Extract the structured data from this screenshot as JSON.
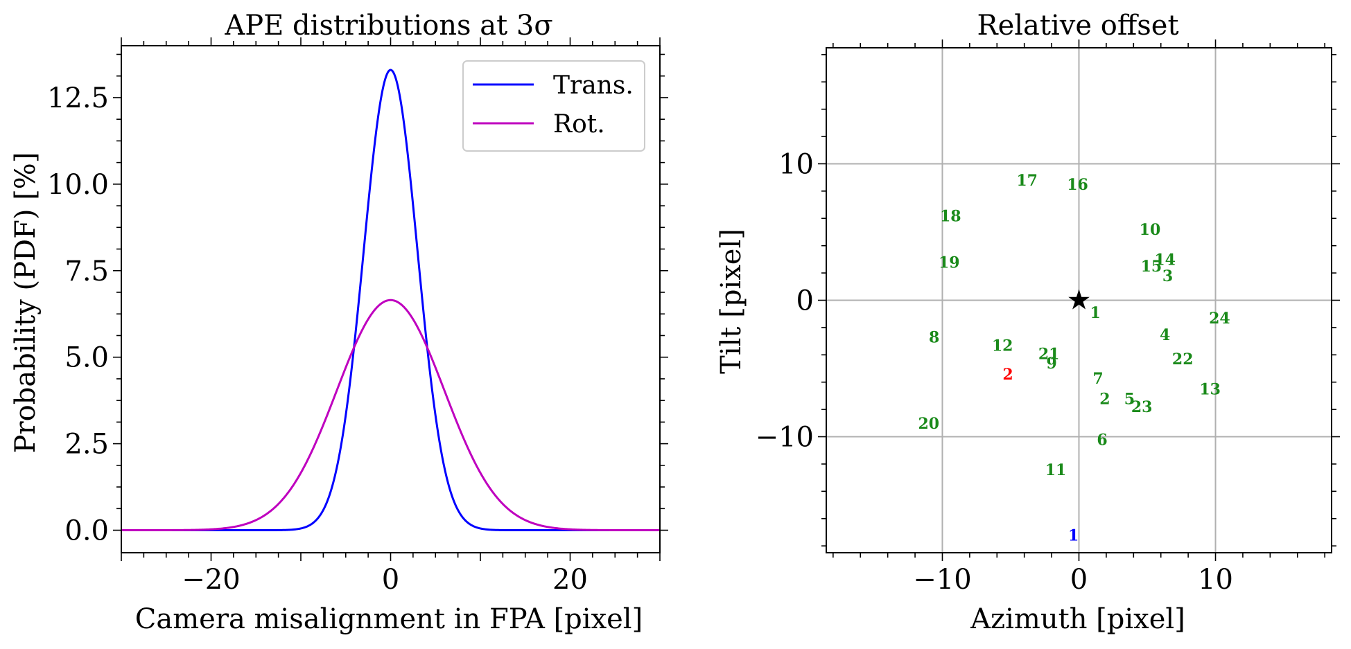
{
  "chart_data": [
    {
      "type": "line",
      "title": "APE distributions at 3σ",
      "xlabel": "Camera misalignment in FPA [pixel]",
      "ylabel": "Probability (PDF) [%]",
      "xlim": [
        -30,
        30
      ],
      "ylim": [
        -0.65,
        14.0
      ],
      "xticks": [
        -20,
        0,
        20
      ],
      "xtick_labels": [
        "−20",
        "0",
        "20"
      ],
      "yticks": [
        0.0,
        2.5,
        5.0,
        7.5,
        10.0,
        12.5
      ],
      "ytick_labels": [
        "0.0",
        "2.5",
        "5.0",
        "7.5",
        "10.0",
        "12.5"
      ],
      "grid": false,
      "legend_position": "top-right",
      "series": [
        {
          "name": "Trans.",
          "color": "#0000ff",
          "kind": "gaussian",
          "mean": 0,
          "sigma": 3.0,
          "peak": 13.3
        },
        {
          "name": "Rot.",
          "color": "#bf00bf",
          "kind": "gaussian",
          "mean": 0,
          "sigma": 6.0,
          "peak": 6.65
        }
      ]
    },
    {
      "type": "scatter",
      "title": "Relative offset",
      "xlabel": "Azimuth [pixel]",
      "ylabel": "Tilt [pixel]",
      "xlim": [
        -18.5,
        18.5
      ],
      "ylim": [
        -18.5,
        18.5
      ],
      "xticks": [
        -10,
        0,
        10
      ],
      "xtick_labels": [
        "−10",
        "0",
        "10"
      ],
      "yticks": [
        -10,
        0,
        10
      ],
      "ytick_labels": [
        "−10",
        "0",
        "10"
      ],
      "grid": true,
      "center_marker": {
        "symbol": "★",
        "x": 0,
        "y": 0,
        "color": "#000000"
      },
      "points": [
        {
          "label": "17",
          "x": -3.8,
          "y": 8.8,
          "color": "#1a8a1a"
        },
        {
          "label": "16",
          "x": -0.1,
          "y": 8.5,
          "color": "#1a8a1a"
        },
        {
          "label": "18",
          "x": -9.4,
          "y": 6.2,
          "color": "#1a8a1a"
        },
        {
          "label": "10",
          "x": 5.2,
          "y": 5.2,
          "color": "#1a8a1a"
        },
        {
          "label": "19",
          "x": -9.5,
          "y": 2.8,
          "color": "#1a8a1a"
        },
        {
          "label": "14",
          "x": 6.3,
          "y": 3.0,
          "color": "#1a8a1a"
        },
        {
          "label": "15",
          "x": 5.3,
          "y": 2.5,
          "color": "#1a8a1a"
        },
        {
          "label": "3",
          "x": 6.5,
          "y": 1.8,
          "color": "#1a8a1a"
        },
        {
          "label": "1",
          "x": 1.2,
          "y": -0.9,
          "color": "#1a8a1a"
        },
        {
          "label": "24",
          "x": 10.3,
          "y": -1.3,
          "color": "#1a8a1a"
        },
        {
          "label": "8",
          "x": -10.6,
          "y": -2.7,
          "color": "#1a8a1a"
        },
        {
          "label": "4",
          "x": 6.3,
          "y": -2.5,
          "color": "#1a8a1a"
        },
        {
          "label": "12",
          "x": -5.6,
          "y": -3.3,
          "color": "#1a8a1a"
        },
        {
          "label": "21",
          "x": -2.2,
          "y": -3.9,
          "color": "#1a8a1a"
        },
        {
          "label": "9",
          "x": -2.0,
          "y": -4.6,
          "color": "#1a8a1a"
        },
        {
          "label": "22",
          "x": 7.6,
          "y": -4.3,
          "color": "#1a8a1a"
        },
        {
          "label": "2",
          "x": -5.2,
          "y": -5.4,
          "color": "#ff0000"
        },
        {
          "label": "7",
          "x": 1.4,
          "y": -5.7,
          "color": "#1a8a1a"
        },
        {
          "label": "13",
          "x": 9.6,
          "y": -6.5,
          "color": "#1a8a1a"
        },
        {
          "label": "2",
          "x": 1.9,
          "y": -7.2,
          "color": "#1a8a1a"
        },
        {
          "label": "5",
          "x": 3.7,
          "y": -7.2,
          "color": "#1a8a1a"
        },
        {
          "label": "23",
          "x": 4.6,
          "y": -7.8,
          "color": "#1a8a1a"
        },
        {
          "label": "20",
          "x": -11.0,
          "y": -9.0,
          "color": "#1a8a1a"
        },
        {
          "label": "6",
          "x": 1.7,
          "y": -10.2,
          "color": "#1a8a1a"
        },
        {
          "label": "11",
          "x": -1.7,
          "y": -12.4,
          "color": "#1a8a1a"
        },
        {
          "label": "1",
          "x": -0.4,
          "y": -17.2,
          "color": "#0000ff"
        }
      ]
    }
  ]
}
